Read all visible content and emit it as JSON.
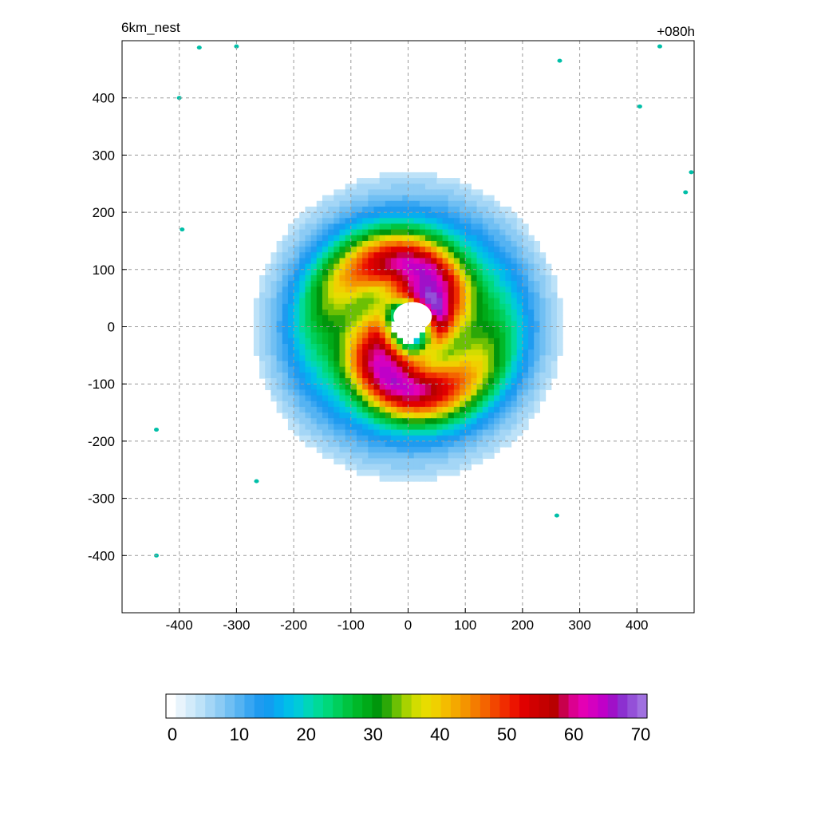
{
  "chart_data": {
    "type": "heatmap",
    "title_left": "6km_nest",
    "title_right": "+080h",
    "xlabel": "",
    "ylabel": "",
    "xlim": [
      -500,
      500
    ],
    "ylim": [
      -500,
      500
    ],
    "x_ticks": [
      -400,
      -300,
      -200,
      -100,
      0,
      100,
      200,
      300,
      400
    ],
    "y_ticks": [
      400,
      300,
      200,
      100,
      0,
      -100,
      -200,
      -300,
      -400
    ],
    "grid": true,
    "colorbar": {
      "min": 0,
      "max": 70,
      "labels": [
        0,
        10,
        20,
        30,
        40,
        50,
        60,
        70
      ],
      "placement": "bottom",
      "colors": [
        "#ffffff",
        "#e8f4fc",
        "#d2ebfa",
        "#bde2f8",
        "#a4d6f6",
        "#8ccbf4",
        "#70bff3",
        "#55b3f2",
        "#38a6f2",
        "#1f9bf0",
        "#129df0",
        "#06aef0",
        "#00bfe8",
        "#00cbd8",
        "#00d6b8",
        "#00da98",
        "#00d87a",
        "#00cf5c",
        "#00c440",
        "#00b828",
        "#00aa18",
        "#00960c",
        "#2ca808",
        "#6cc004",
        "#a8d200",
        "#d2dc00",
        "#e8dc00",
        "#f0d000",
        "#f4bc00",
        "#f4a800",
        "#f49400",
        "#f47c00",
        "#f46400",
        "#f24600",
        "#f02c00",
        "#ec1400",
        "#e00000",
        "#d00000",
        "#c40000",
        "#b80000",
        "#c8004c",
        "#dc0090",
        "#e400b4",
        "#d400c0",
        "#c000c8",
        "#a010c8",
        "#8c30d0",
        "#9450d8",
        "#a070e0"
      ]
    },
    "features": {
      "storm_center": [
        0,
        0
      ],
      "eye_radius_km": 30,
      "outer_extent_km": 260
    }
  }
}
